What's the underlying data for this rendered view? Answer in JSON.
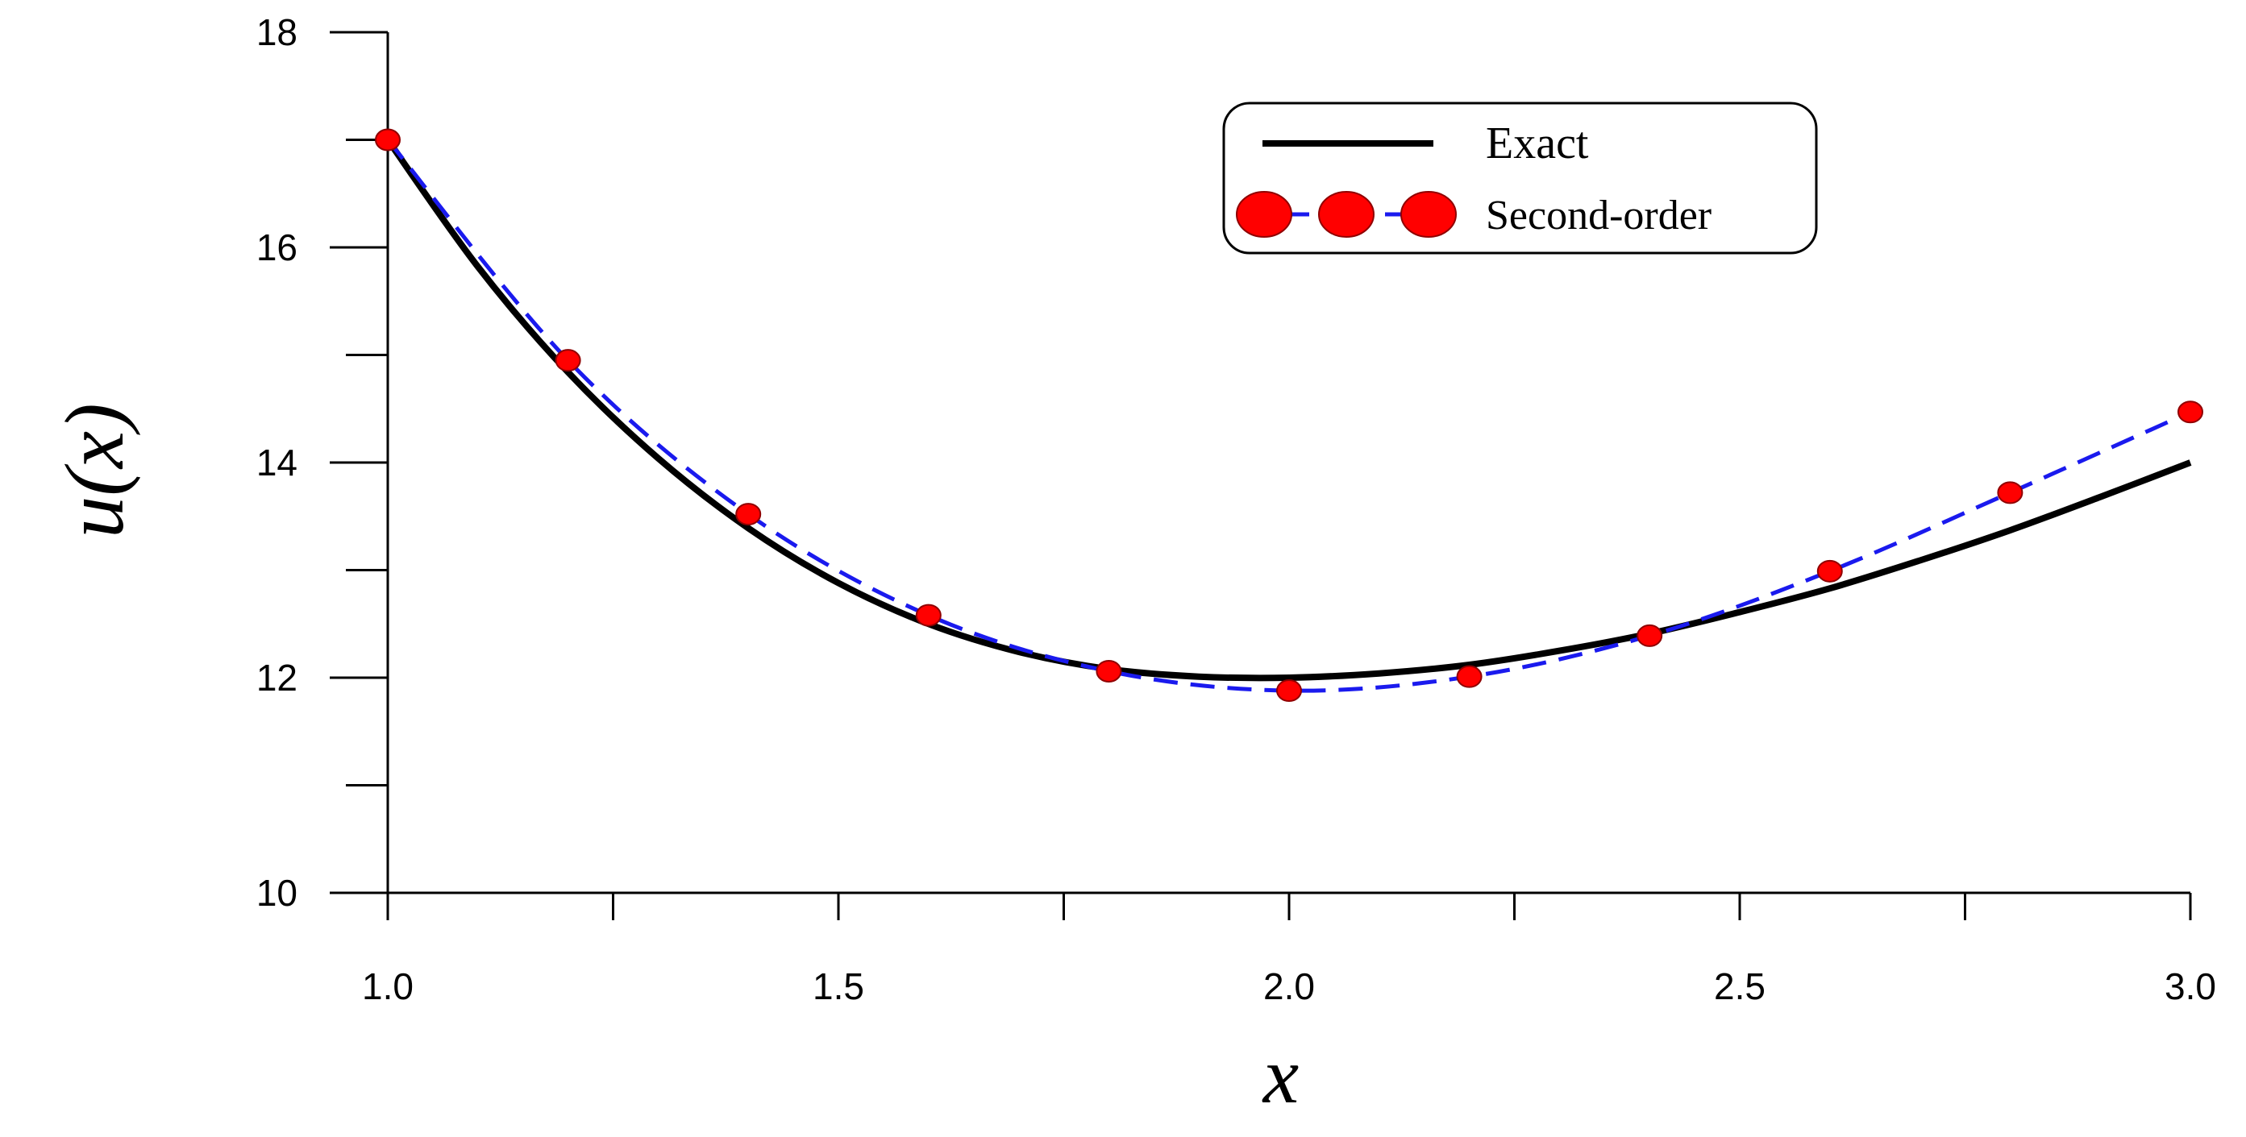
{
  "chart_data": {
    "type": "line",
    "title": "",
    "xlabel": "x",
    "ylabel": "u(x)",
    "xlim": [
      1.0,
      3.0
    ],
    "ylim": [
      10,
      18
    ],
    "x_ticks": [
      1.0,
      1.5,
      2.0,
      2.5,
      3.0
    ],
    "x_tick_labels": [
      "1.0",
      "1.5",
      "2.0",
      "2.5",
      "3.0"
    ],
    "x_minor_ticks": [
      1.25,
      1.75,
      2.25,
      2.75
    ],
    "y_ticks": [
      10,
      12,
      14,
      16,
      18
    ],
    "y_tick_labels": [
      "10",
      "12",
      "14",
      "16",
      "18"
    ],
    "y_minor_ticks": [
      11,
      13,
      15,
      17
    ],
    "grid": false,
    "legend_position": "top-right",
    "series": [
      {
        "name": "Exact",
        "style": "solid",
        "color": "#000000",
        "x": [
          1.0,
          1.1,
          1.2,
          1.3,
          1.4,
          1.5,
          1.6,
          1.7,
          1.8,
          1.9,
          2.0,
          2.1,
          2.2,
          2.3,
          2.4,
          2.5,
          2.6,
          2.7,
          2.8,
          2.9,
          3.0
        ],
        "values": [
          17.0,
          15.82,
          14.84,
          14.04,
          13.39,
          12.88,
          12.5,
          12.24,
          12.08,
          12.01,
          12.0,
          12.04,
          12.12,
          12.25,
          12.41,
          12.61,
          12.83,
          13.09,
          13.37,
          13.68,
          14.0
        ]
      },
      {
        "name": "Second-order",
        "style": "dashed-with-markers",
        "color": "#1a1aee",
        "marker_color": "#ff0000",
        "x": [
          1.0,
          1.2,
          1.4,
          1.6,
          1.8,
          2.0,
          2.2,
          2.4,
          2.6,
          2.8,
          3.0
        ],
        "values": [
          17.0,
          14.95,
          13.52,
          12.58,
          12.06,
          11.88,
          12.01,
          12.39,
          12.99,
          13.72,
          14.47
        ]
      }
    ]
  }
}
